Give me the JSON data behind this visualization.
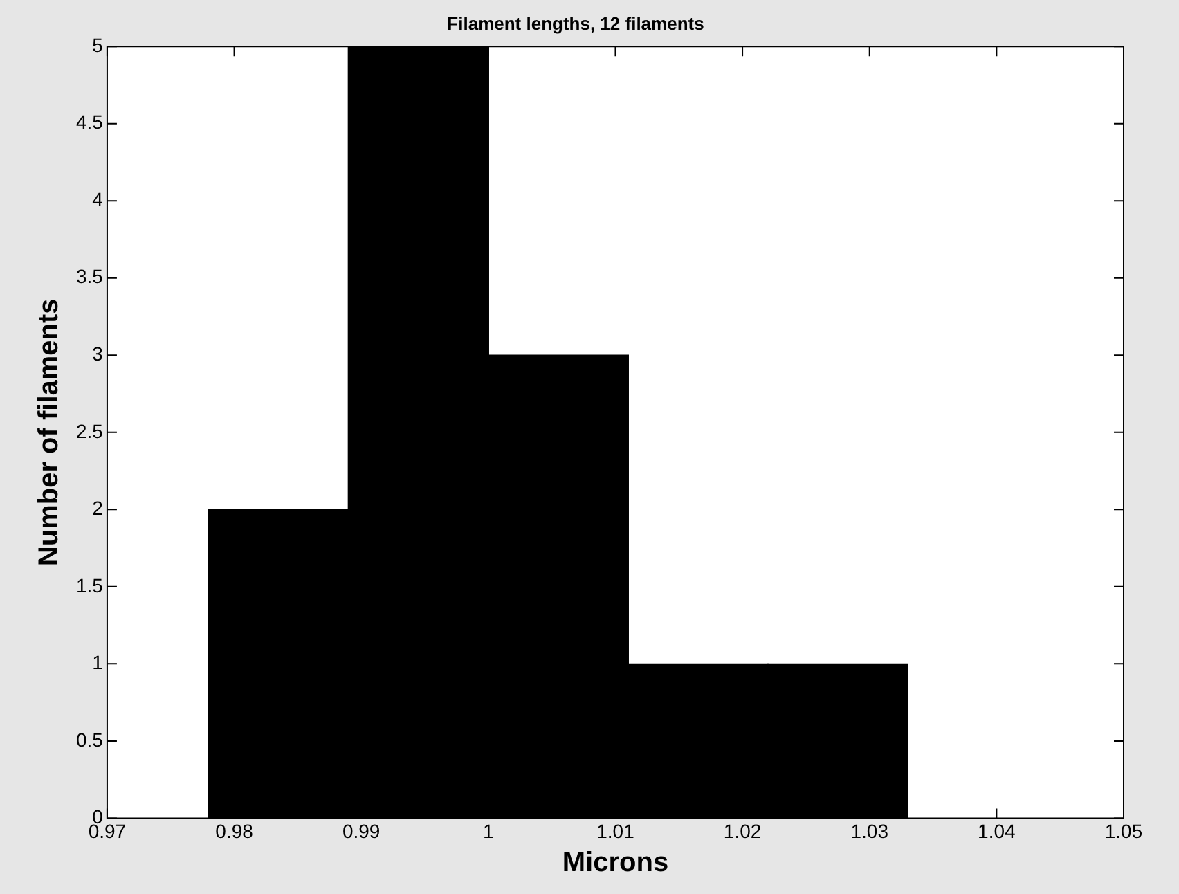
{
  "chart_data": {
    "type": "histogram",
    "title": "Filament lengths, 12 filaments",
    "xlabel": "Microns",
    "ylabel": "Number of filaments",
    "bins": [
      0.978,
      0.989,
      1.0,
      1.011,
      1.022,
      1.033
    ],
    "values": [
      2,
      5,
      3,
      1,
      1
    ],
    "color": "#000000",
    "xlim": [
      0.97,
      1.05
    ],
    "xticks": [
      0.97,
      0.98,
      0.99,
      1,
      1.01,
      1.02,
      1.03,
      1.04,
      1.05
    ],
    "ylim": [
      0,
      5
    ],
    "yticks": [
      0,
      0.5,
      1,
      1.5,
      2,
      2.5,
      3,
      3.5,
      4,
      4.5,
      5
    ],
    "grid": false,
    "legend": false
  }
}
